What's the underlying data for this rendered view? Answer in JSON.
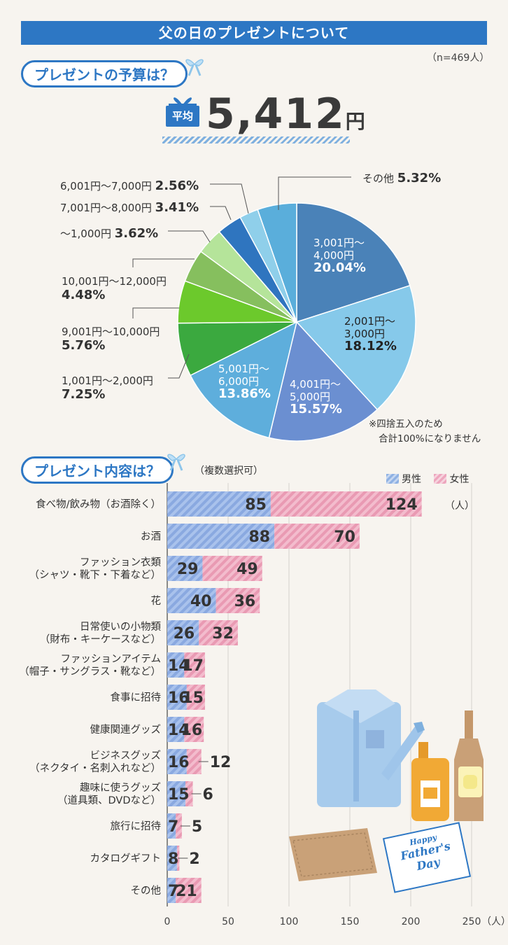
{
  "title": "父の日のプレゼントについて",
  "sample_size": "（n=469人）",
  "budget": {
    "heading": "プレゼントの予算は？",
    "avg_label": "平均",
    "avg_value": "5,412",
    "avg_unit": "円",
    "note_line1": "※四捨五入のため",
    "note_line2": "合計100%になりません"
  },
  "content": {
    "heading": "プレゼント内容は？",
    "subnote": "（複数選択可）",
    "unit_label": "（人）",
    "axis_unit": "（人）"
  },
  "card": {
    "line1": "Happy",
    "line2": "Father's",
    "line3": "Day"
  },
  "chart_data": [
    {
      "type": "pie",
      "title": "プレゼントの予算は？",
      "slices": [
        {
          "label": "3,001円～4,000円",
          "value": 20.04,
          "value_text": "20.04%",
          "color": "#4a82b8"
        },
        {
          "label": "2,001円～3,000円",
          "value": 18.12,
          "value_text": "18.12%",
          "color": "#86c9ea"
        },
        {
          "label": "4,001円～5,000円",
          "value": 15.57,
          "value_text": "15.57%",
          "color": "#6b8fd1"
        },
        {
          "label": "5,001円～6,000円",
          "value": 13.86,
          "value_text": "13.86%",
          "color": "#5eaedc"
        },
        {
          "label": "1,001円～2,000円",
          "value": 7.25,
          "value_text": "7.25%",
          "color": "#3ba93f"
        },
        {
          "label": "9,001円～10,000円",
          "value": 5.76,
          "value_text": "5.76%",
          "color": "#6cc92c"
        },
        {
          "label": "10,001円～12,000円",
          "value": 4.48,
          "value_text": "4.48%",
          "color": "#86bf5e"
        },
        {
          "label": "～1,000円",
          "value": 3.62,
          "value_text": "3.62%",
          "color": "#b5e49a"
        },
        {
          "label": "7,001円～8,000円",
          "value": 3.41,
          "value_text": "3.41%",
          "color": "#2f75bf"
        },
        {
          "label": "6,001円～7,000円",
          "value": 2.56,
          "value_text": "2.56%",
          "color": "#8fcfea"
        },
        {
          "label": "その他",
          "value": 5.32,
          "value_text": "5.32%",
          "color": "#5aaedb"
        }
      ]
    },
    {
      "type": "bar",
      "stacked": true,
      "orientation": "horizontal",
      "title": "プレゼント内容は？",
      "categories": [
        [
          "食べ物/飲み物（お酒除く）"
        ],
        [
          "お酒"
        ],
        [
          "ファッション衣類",
          "（シャツ・靴下・下着など）"
        ],
        [
          "花"
        ],
        [
          "日常使いの小物類",
          "（財布・キーケースなど）"
        ],
        [
          "ファッションアイテム",
          "（帽子・サングラス・靴など）"
        ],
        [
          "食事に招待"
        ],
        [
          "健康関連グッズ"
        ],
        [
          "ビジネスグッズ",
          "（ネクタイ・名刺入れなど）"
        ],
        [
          "趣味に使うグッズ",
          "（道具類、DVDなど）"
        ],
        [
          "旅行に招待"
        ],
        [
          "カタログギフト"
        ],
        [
          "その他"
        ]
      ],
      "series": [
        {
          "name": "男性",
          "color": "#8fb1e3",
          "values": [
            85,
            88,
            29,
            40,
            26,
            14,
            16,
            14,
            16,
            15,
            7,
            8,
            7
          ]
        },
        {
          "name": "女性",
          "color": "#eda6bd",
          "values": [
            124,
            70,
            49,
            36,
            32,
            17,
            15,
            16,
            12,
            6,
            5,
            2,
            21
          ]
        }
      ],
      "xlim": [
        0,
        250
      ],
      "xticks": [
        0,
        50,
        100,
        150,
        200,
        250
      ]
    }
  ]
}
